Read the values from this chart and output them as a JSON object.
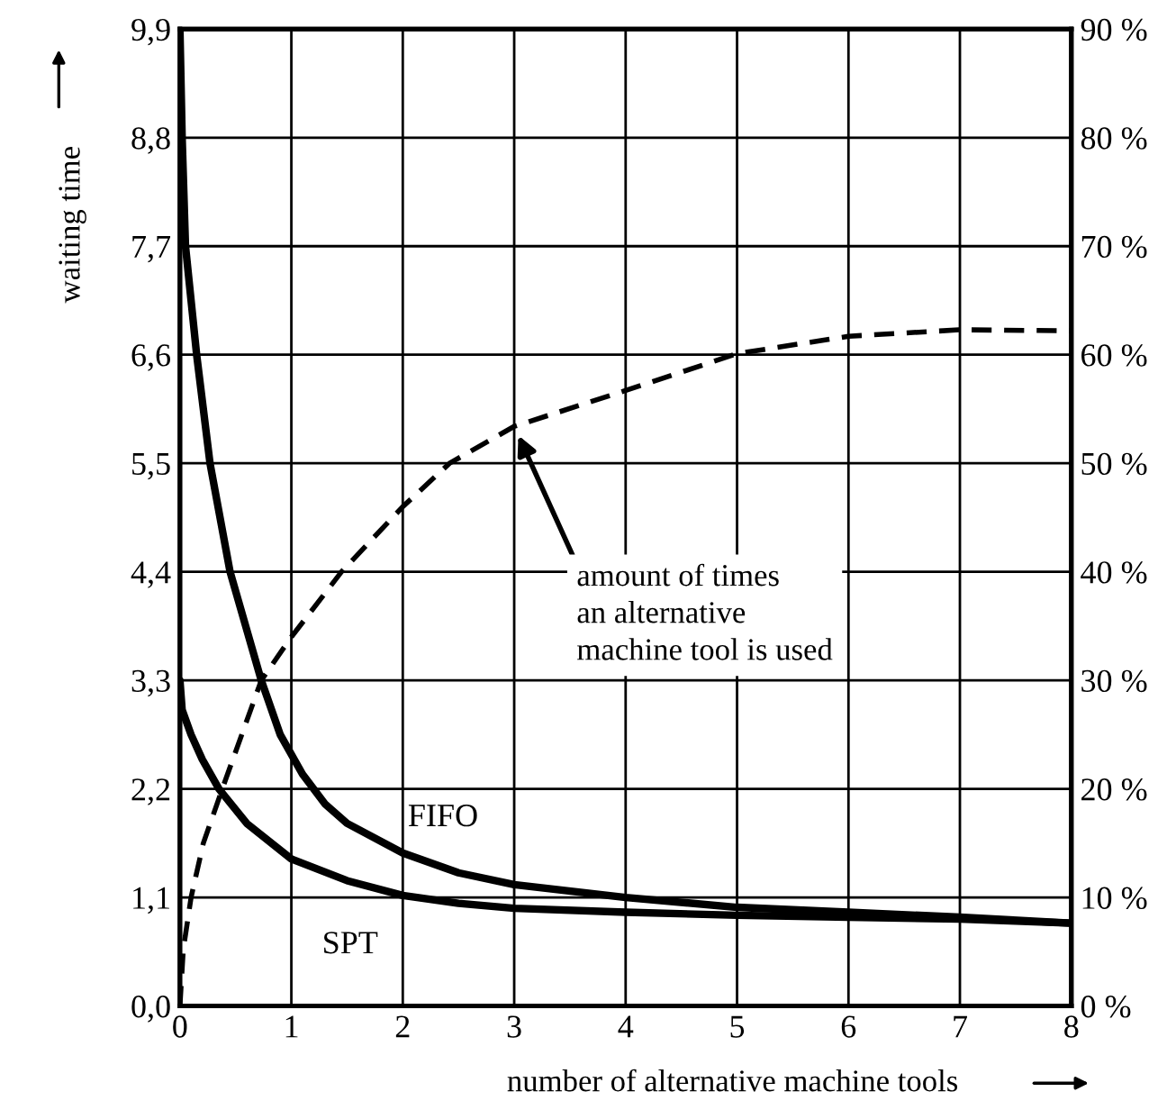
{
  "chart_data": {
    "type": "line",
    "xlabel": "number of alternative machine tools",
    "ylabel": "waiting time",
    "xlim": [
      0,
      8
    ],
    "xticks": [
      0,
      1,
      2,
      3,
      4,
      5,
      6,
      7,
      8
    ],
    "ylim": [
      0,
      9.9
    ],
    "yticks": [
      {
        "value": 0,
        "label": "0,0"
      },
      {
        "value": 1.1,
        "label": "1,1"
      },
      {
        "value": 2.2,
        "label": "2,2"
      },
      {
        "value": 3.3,
        "label": "3,3"
      },
      {
        "value": 4.4,
        "label": "4,4"
      },
      {
        "value": 5.5,
        "label": "5,5"
      },
      {
        "value": 6.6,
        "label": "6,6"
      },
      {
        "value": 7.7,
        "label": "7,7"
      },
      {
        "value": 8.8,
        "label": "8,8"
      },
      {
        "value": 9.9,
        "label": "9,9"
      }
    ],
    "y2lim": [
      0,
      90
    ],
    "y2ticks": [
      {
        "value": 0,
        "label": "0 %"
      },
      {
        "value": 10,
        "label": "10 %"
      },
      {
        "value": 20,
        "label": "20 %"
      },
      {
        "value": 30,
        "label": "30 %"
      },
      {
        "value": 40,
        "label": "40 %"
      },
      {
        "value": 50,
        "label": "50 %"
      },
      {
        "value": 60,
        "label": "60 %"
      },
      {
        "value": 70,
        "label": "70 %"
      },
      {
        "value": 80,
        "label": "80 %"
      },
      {
        "value": 90,
        "label": "90 %"
      }
    ],
    "grid": true,
    "legend": false,
    "series": [
      {
        "name": "FIFO",
        "color": "#000000",
        "line_style": "solid",
        "x": [
          0,
          0.02,
          0.05,
          0.15,
          0.27,
          0.45,
          0.73,
          0.9,
          1.1,
          1.3,
          1.5,
          2,
          2.5,
          3,
          4,
          5,
          6,
          7,
          8
        ],
        "values": [
          9.9,
          8.8,
          7.7,
          6.6,
          5.5,
          4.4,
          3.3,
          2.75,
          2.35,
          2.05,
          1.85,
          1.55,
          1.35,
          1.23,
          1.1,
          1.0,
          0.95,
          0.9,
          0.84
        ]
      },
      {
        "name": "SPT",
        "color": "#000000",
        "line_style": "solid",
        "x": [
          0,
          0.02,
          0.1,
          0.2,
          0.35,
          0.6,
          1,
          1.5,
          2,
          2.5,
          3,
          4,
          5,
          6,
          7,
          8
        ],
        "values": [
          3.3,
          3.0,
          2.75,
          2.5,
          2.2,
          1.85,
          1.49,
          1.27,
          1.12,
          1.04,
          0.99,
          0.95,
          0.92,
          0.9,
          0.88,
          0.84
        ]
      },
      {
        "color": "#000000",
        "line_style": "dashed",
        "axis": "y2",
        "x": [
          0,
          0.03,
          0.1,
          0.21,
          0.38,
          0.73,
          1,
          1.45,
          2,
          2.42,
          3,
          4,
          5,
          6,
          7,
          8
        ],
        "values": [
          0,
          5.2,
          10,
          15,
          20,
          30,
          34,
          40,
          46,
          50,
          53.4,
          56.7,
          60.1,
          61.7,
          62.3,
          62.2
        ]
      }
    ],
    "annotations": [
      "amount of times\nan alternative\nmachine tool is used"
    ]
  }
}
